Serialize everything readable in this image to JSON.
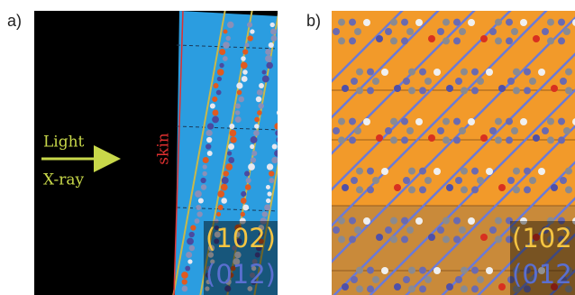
{
  "panels": [
    {
      "label": "a)",
      "light": "Light",
      "xray": "X-ray",
      "skin": "skin",
      "plane1": "(102)",
      "plane2": "(012)"
    },
    {
      "label": "b)",
      "plane1": "(102",
      "plane2": "(012"
    }
  ]
}
